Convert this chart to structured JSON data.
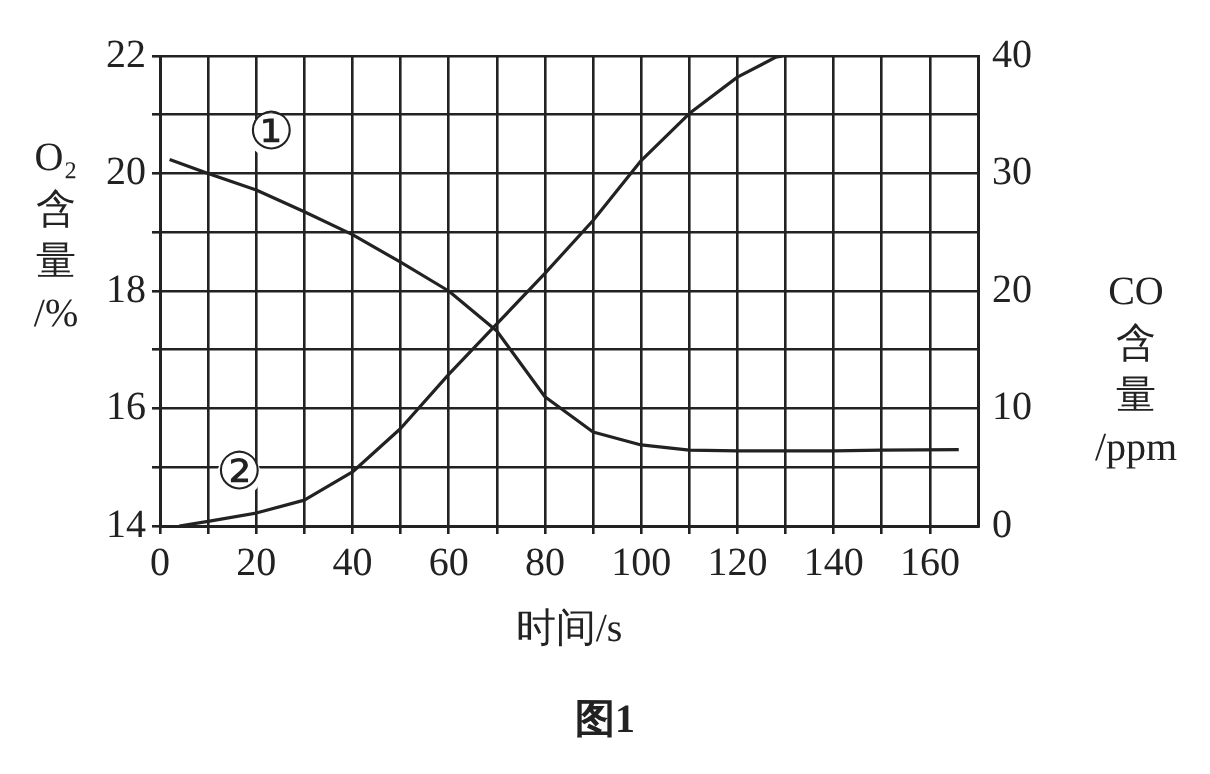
{
  "chart_data": {
    "type": "line",
    "xlabel": "时间/s",
    "ylabel": "O₂含量/%",
    "y2label": "CO含量/ppm",
    "xlim": [
      0,
      170
    ],
    "xticks": [
      0,
      {
        "value": 10,
        "label": null
      },
      20,
      {
        "value": 30,
        "label": null
      },
      40,
      {
        "value": 50,
        "label": null
      },
      60,
      {
        "value": 70,
        "label": null
      },
      80,
      {
        "value": 90,
        "label": null
      },
      100,
      {
        "value": 110,
        "label": null
      },
      120,
      {
        "value": 130,
        "label": null
      },
      140,
      {
        "value": 150,
        "label": null
      },
      160
    ],
    "ylim": [
      14,
      22
    ],
    "yticks": [
      14,
      {
        "value": 15,
        "label": null
      },
      16,
      {
        "value": 17,
        "label": null
      },
      18,
      {
        "value": 19,
        "label": null
      },
      20,
      {
        "value": 21,
        "label": null
      },
      22
    ],
    "y2lim": [
      0,
      40
    ],
    "y2ticks": [
      0,
      10,
      20,
      30,
      40
    ],
    "series": [
      {
        "color": "#222222",
        "x": [
          2,
          10,
          20,
          30,
          40,
          50,
          60,
          70,
          80,
          90,
          100,
          110,
          120,
          130,
          140,
          150,
          166
        ],
        "values": [
          20.24,
          20.0,
          19.72,
          19.35,
          18.96,
          18.49,
          18.0,
          17.32,
          16.2,
          15.6,
          15.38,
          15.29,
          15.28,
          15.28,
          15.28,
          15.29,
          15.3
        ]
      },
      {
        "color": "#222222",
        "axis": "y2",
        "x": [
          4,
          10,
          20,
          30,
          40,
          50,
          60,
          70,
          80,
          90,
          100,
          110,
          120,
          128,
          129.4
        ],
        "values": [
          0,
          0.4,
          1.1,
          2.2,
          4.6,
          8.3,
          12.9,
          17.2,
          21.5,
          26,
          31.1,
          35.1,
          38.2,
          39.9,
          40
        ]
      }
    ],
    "annotations": [
      {
        "text": "①",
        "x": 23,
        "y": 20.65
      },
      {
        "text": "②",
        "x": 16.4,
        "y": 14.86
      },
      "图1"
    ],
    "grid": true,
    "legend": false,
    "marker": "none",
    "line_style": "solid"
  }
}
